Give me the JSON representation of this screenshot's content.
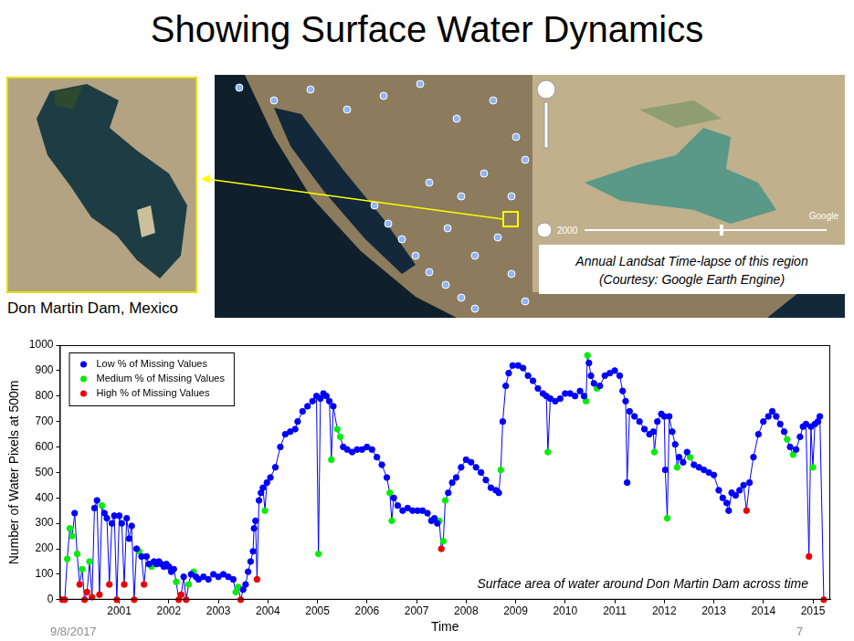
{
  "slide": {
    "title": "Showing Surface Water Dynamics",
    "photo_caption": "Don Martin Dam, Mexico",
    "inset_caption": [
      "Annual Landsat Time-lapse of this region",
      "(Courtesy: Google Earth Engine)"
    ],
    "inset_slider_label": "2000",
    "inset_watermark": "Google",
    "footer_date": "9/8/2017",
    "page_number": "7"
  },
  "chart_data": {
    "type": "line",
    "x_label": "Time",
    "y_label": "Number of Water Pixels at 500m",
    "annotations": [
      "Surface area of water around Don Martin Dam across time"
    ],
    "legend": "upper left",
    "grid": false,
    "xlim": [
      1999.8,
      2015.35
    ],
    "xticks": [
      2001,
      2002,
      2003,
      2004,
      2005,
      2006,
      2007,
      2008,
      2009,
      2010,
      2011,
      2012,
      2013,
      2014,
      2015
    ],
    "ylim": [
      0,
      1000
    ],
    "yticks": [
      0,
      100,
      200,
      300,
      400,
      500,
      600,
      700,
      800,
      900,
      1000
    ],
    "x": [
      1999.85,
      1999.9,
      1999.95,
      2000,
      2000.05,
      2000.1,
      2000.15,
      2000.2,
      2000.25,
      2000.3,
      2000.35,
      2000.4,
      2000.45,
      2000.5,
      2000.55,
      2000.6,
      2000.65,
      2000.7,
      2000.75,
      2000.8,
      2000.85,
      2000.9,
      2000.95,
      2001,
      2001.05,
      2001.1,
      2001.15,
      2001.2,
      2001.25,
      2001.3,
      2001.35,
      2001.4,
      2001.45,
      2001.5,
      2001.55,
      2001.6,
      2001.65,
      2001.7,
      2001.75,
      2001.8,
      2001.85,
      2001.9,
      2001.95,
      2002,
      2002.05,
      2002.1,
      2002.15,
      2002.2,
      2002.25,
      2002.3,
      2002.35,
      2002.4,
      2002.45,
      2002.5,
      2002.55,
      2002.6,
      2002.7,
      2002.8,
      2002.9,
      2003,
      2003.1,
      2003.2,
      2003.3,
      2003.35,
      2003.4,
      2003.45,
      2003.5,
      2003.55,
      2003.6,
      2003.65,
      2003.7,
      2003.72,
      2003.75,
      2003.78,
      2003.82,
      2003.86,
      2003.9,
      2003.94,
      2003.98,
      2004.05,
      2004.15,
      2004.25,
      2004.35,
      2004.45,
      2004.55,
      2004.6,
      2004.7,
      2004.8,
      2004.9,
      2004.98,
      2005.02,
      2005.06,
      2005.12,
      2005.18,
      2005.24,
      2005.28,
      2005.32,
      2005.4,
      2005.46,
      2005.52,
      2005.6,
      2005.7,
      2005.8,
      2005.9,
      2006,
      2006.1,
      2006.2,
      2006.3,
      2006.4,
      2006.46,
      2006.5,
      2006.54,
      2006.62,
      2006.72,
      2006.82,
      2006.92,
      2007.02,
      2007.12,
      2007.22,
      2007.3,
      2007.36,
      2007.42,
      2007.46,
      2007.5,
      2007.54,
      2007.58,
      2007.64,
      2007.72,
      2007.8,
      2007.9,
      2008,
      2008.1,
      2008.2,
      2008.3,
      2008.4,
      2008.5,
      2008.6,
      2008.66,
      2008.7,
      2008.74,
      2008.8,
      2008.86,
      2008.94,
      2009.05,
      2009.15,
      2009.25,
      2009.35,
      2009.45,
      2009.55,
      2009.62,
      2009.65,
      2009.7,
      2009.8,
      2009.9,
      2010,
      2010.1,
      2010.2,
      2010.3,
      2010.38,
      2010.42,
      2010.45,
      2010.48,
      2010.52,
      2010.58,
      2010.64,
      2010.7,
      2010.8,
      2010.9,
      2011,
      2011.1,
      2011.16,
      2011.22,
      2011.25,
      2011.3,
      2011.4,
      2011.5,
      2011.6,
      2011.7,
      2011.78,
      2011.8,
      2011.86,
      2011.94,
      2012,
      2012.02,
      2012.06,
      2012.1,
      2012.16,
      2012.22,
      2012.26,
      2012.3,
      2012.38,
      2012.46,
      2012.52,
      2012.6,
      2012.7,
      2012.8,
      2012.9,
      2013,
      2013.1,
      2013.18,
      2013.26,
      2013.3,
      2013.36,
      2013.44,
      2013.52,
      2013.6,
      2013.66,
      2013.72,
      2013.8,
      2013.9,
      2014,
      2014.1,
      2014.18,
      2014.26,
      2014.34,
      2014.42,
      2014.48,
      2014.54,
      2014.6,
      2014.66,
      2014.74,
      2014.8,
      2014.86,
      2014.92,
      2014.96,
      2015,
      2015.04,
      2015.1,
      2015.14,
      2015.22
    ],
    "series": [
      {
        "name": "Low % of Missing Values",
        "color": "#0000ff",
        "marker": "circle",
        "line_style": "solid",
        "values": [
          null,
          null,
          null,
          null,
          null,
          340,
          null,
          null,
          null,
          null,
          null,
          null,
          null,
          360,
          390,
          null,
          null,
          340,
          320,
          null,
          300,
          330,
          null,
          330,
          300,
          null,
          320,
          240,
          290,
          null,
          200,
          null,
          170,
          null,
          170,
          140,
          null,
          150,
          140,
          150,
          140,
          130,
          140,
          130,
          110,
          120,
          null,
          null,
          null,
          90,
          null,
          null,
          100,
          null,
          90,
          80,
          90,
          80,
          100,
          90,
          100,
          90,
          80,
          null,
          null,
          null,
          40,
          60,
          110,
          150,
          190,
          280,
          310,
          null,
          390,
          420,
          440,
          null,
          460,
          480,
          520,
          600,
          650,
          660,
          670,
          700,
          740,
          760,
          780,
          800,
          null,
          790,
          810,
          800,
          780,
          null,
          760,
          null,
          null,
          600,
          590,
          580,
          590,
          590,
          600,
          590,
          560,
          530,
          480,
          null,
          null,
          400,
          370,
          350,
          360,
          350,
          350,
          350,
          340,
          310,
          320,
          300,
          null,
          null,
          null,
          null,
          420,
          460,
          480,
          520,
          550,
          540,
          520,
          500,
          470,
          440,
          430,
          420,
          null,
          700,
          840,
          890,
          920,
          920,
          910,
          880,
          860,
          830,
          810,
          800,
          null,
          790,
          780,
          790,
          810,
          810,
          800,
          820,
          800,
          null,
          null,
          930,
          880,
          850,
          null,
          840,
          880,
          890,
          900,
          880,
          820,
          780,
          460,
          740,
          720,
          700,
          670,
          650,
          660,
          null,
          700,
          730,
          720,
          510,
          null,
          720,
          660,
          610,
          null,
          560,
          540,
          580,
          null,
          530,
          520,
          510,
          500,
          490,
          430,
          400,
          380,
          350,
          420,
          410,
          430,
          450,
          null,
          460,
          560,
          650,
          700,
          720,
          740,
          720,
          690,
          660,
          null,
          600,
          null,
          590,
          640,
          680,
          690,
          null,
          680,
          null,
          690,
          700,
          720,
          null
        ]
      },
      {
        "name": "Medium % of Missing Values",
        "color": "#00ee00",
        "marker": "circle",
        "values": [
          null,
          null,
          160,
          280,
          250,
          null,
          180,
          null,
          120,
          null,
          null,
          150,
          null,
          null,
          null,
          null,
          370,
          null,
          null,
          null,
          null,
          null,
          null,
          null,
          null,
          null,
          null,
          null,
          null,
          null,
          null,
          190,
          null,
          null,
          null,
          null,
          130,
          null,
          null,
          null,
          null,
          null,
          null,
          null,
          null,
          null,
          70,
          null,
          null,
          null,
          null,
          60,
          null,
          110,
          null,
          null,
          null,
          null,
          null,
          null,
          null,
          null,
          null,
          30,
          50,
          null,
          null,
          null,
          null,
          null,
          null,
          null,
          null,
          null,
          null,
          null,
          null,
          350,
          null,
          null,
          null,
          null,
          null,
          null,
          null,
          null,
          null,
          null,
          null,
          null,
          180,
          null,
          null,
          null,
          null,
          550,
          null,
          670,
          640,
          null,
          null,
          null,
          null,
          null,
          null,
          null,
          null,
          null,
          null,
          420,
          310,
          null,
          null,
          null,
          null,
          null,
          null,
          null,
          null,
          null,
          null,
          null,
          310,
          null,
          230,
          390,
          null,
          null,
          null,
          null,
          null,
          null,
          null,
          null,
          null,
          null,
          null,
          null,
          510,
          null,
          null,
          null,
          null,
          null,
          null,
          null,
          null,
          null,
          null,
          null,
          580,
          null,
          null,
          null,
          null,
          null,
          null,
          null,
          null,
          780,
          960,
          null,
          null,
          null,
          830,
          null,
          null,
          null,
          null,
          null,
          null,
          null,
          null,
          null,
          null,
          null,
          null,
          null,
          null,
          580,
          null,
          null,
          null,
          null,
          320,
          null,
          null,
          null,
          520,
          null,
          null,
          null,
          560,
          null,
          null,
          null,
          null,
          null,
          null,
          null,
          null,
          null,
          null,
          null,
          null,
          null,
          null,
          null,
          null,
          null,
          null,
          null,
          null,
          null,
          null,
          null,
          630,
          null,
          570,
          null,
          null,
          null,
          null,
          null,
          null,
          520,
          null,
          null,
          null,
          null
        ]
      },
      {
        "name": "High % of Missing Values",
        "color": "#ee0000",
        "marker": "circle",
        "values": [
          0,
          0,
          null,
          null,
          null,
          null,
          null,
          60,
          null,
          0,
          30,
          null,
          10,
          null,
          null,
          20,
          null,
          null,
          null,
          60,
          null,
          null,
          0,
          null,
          null,
          60,
          null,
          null,
          null,
          0,
          null,
          null,
          null,
          60,
          null,
          null,
          null,
          null,
          null,
          null,
          null,
          null,
          null,
          null,
          null,
          null,
          null,
          0,
          20,
          null,
          0,
          null,
          null,
          null,
          null,
          null,
          null,
          null,
          null,
          null,
          null,
          null,
          null,
          null,
          null,
          0,
          null,
          null,
          null,
          null,
          null,
          null,
          null,
          80,
          null,
          null,
          null,
          null,
          null,
          null,
          null,
          null,
          null,
          null,
          null,
          null,
          null,
          null,
          null,
          null,
          null,
          null,
          null,
          null,
          null,
          null,
          null,
          null,
          null,
          null,
          null,
          null,
          null,
          null,
          null,
          null,
          null,
          null,
          null,
          null,
          null,
          null,
          null,
          null,
          null,
          null,
          null,
          null,
          null,
          null,
          null,
          null,
          null,
          200,
          null,
          null,
          null,
          null,
          null,
          null,
          null,
          null,
          null,
          null,
          null,
          null,
          null,
          null,
          null,
          null,
          null,
          null,
          null,
          null,
          null,
          null,
          null,
          null,
          null,
          null,
          null,
          null,
          null,
          null,
          null,
          null,
          null,
          null,
          null,
          null,
          null,
          null,
          null,
          null,
          null,
          null,
          null,
          null,
          null,
          null,
          null,
          null,
          null,
          null,
          null,
          null,
          null,
          null,
          null,
          null,
          null,
          null,
          null,
          null,
          null,
          null,
          null,
          null,
          null,
          null,
          null,
          null,
          null,
          null,
          null,
          null,
          null,
          null,
          null,
          null,
          null,
          null,
          null,
          null,
          null,
          null,
          350,
          null,
          null,
          null,
          null,
          null,
          null,
          null,
          null,
          null,
          null,
          null,
          null,
          null,
          null,
          null,
          null,
          170,
          null,
          null,
          null,
          null,
          null,
          0
        ]
      }
    ]
  }
}
